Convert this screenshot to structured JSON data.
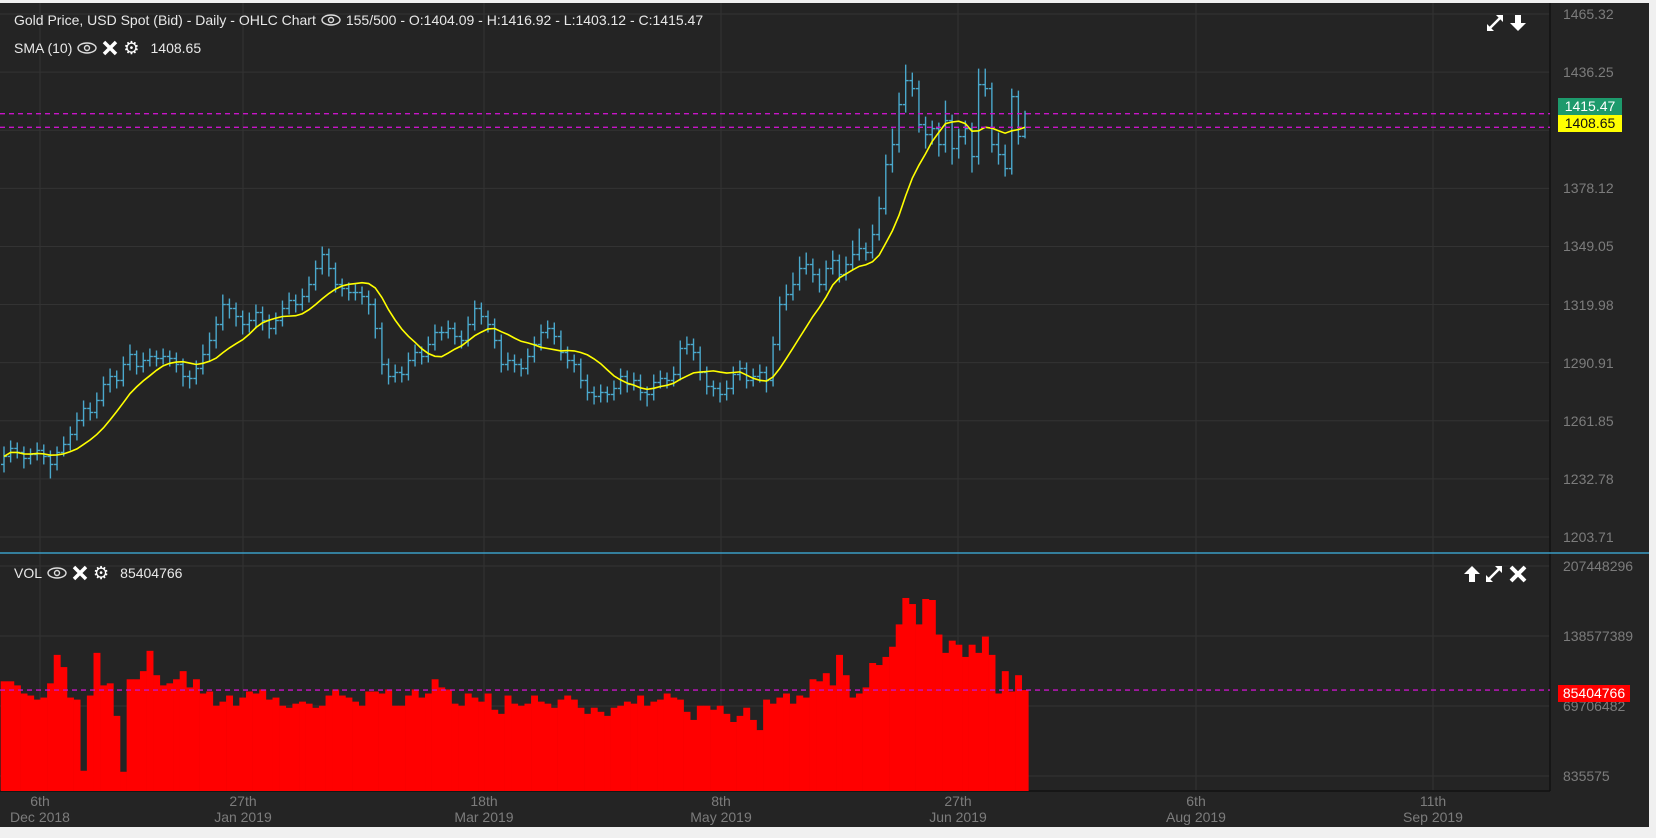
{
  "price_panel": {
    "title": "Gold Price, USD Spot (Bid) - Daily - OHLC Chart",
    "ohlc_readout": "155/500 - O:1404.09 - H:1416.92 - L:1403.12 - C:1415.47",
    "sma_label": "SMA (10)",
    "sma_value": "1408.65",
    "last_price_badge": "1415.47",
    "sma_badge": "1408.65"
  },
  "volume_panel": {
    "label": "VOL",
    "value": "85404766",
    "badge": "85404766"
  },
  "colors": {
    "background": "#242424",
    "ohlc": "#4aa8cc",
    "sma": "#ffff00",
    "guide": "#c814c8",
    "last_badge": "#1d9a6c",
    "sma_badge": "#ffff00",
    "volume": "#ff0000",
    "separator": "#3a9cc4"
  },
  "icons": {
    "visibility": "eye-icon",
    "remove": "close-icon",
    "settings": "gear-icon",
    "maximize": "expand-icon",
    "move_down": "arrow-down-icon",
    "move_up": "arrow-up-icon"
  },
  "chart_data": [
    {
      "type": "ohlc",
      "ylim": [
        1203.71,
        1465.32
      ],
      "y_ticks": [
        "1465.32",
        "1436.25",
        "1378.12",
        "1349.05",
        "1319.98",
        "1290.91",
        "1261.85",
        "1232.78",
        "1203.71"
      ],
      "x_ticks": [
        {
          "day": "6th",
          "month": "Dec 2018"
        },
        {
          "day": "27th",
          "month": "Jan 2019"
        },
        {
          "day": "18th",
          "month": "Mar 2019"
        },
        {
          "day": "8th",
          "month": "May 2019"
        },
        {
          "day": "27th",
          "month": "Jun 2019"
        },
        {
          "day": "6th",
          "month": "Aug 2019"
        },
        {
          "day": "11th",
          "month": "Sep 2019"
        }
      ],
      "grid": true,
      "overlay": {
        "type": "sma",
        "period": 10
      },
      "ohlc": [
        [
          1240,
          1249,
          1236,
          1244
        ],
        [
          1244,
          1252,
          1241,
          1248
        ],
        [
          1248,
          1251,
          1243,
          1246
        ],
        [
          1246,
          1249,
          1238,
          1243
        ],
        [
          1243,
          1248,
          1240,
          1245
        ],
        [
          1245,
          1251,
          1242,
          1247
        ],
        [
          1247,
          1250,
          1240,
          1244
        ],
        [
          1244,
          1247,
          1233,
          1240
        ],
        [
          1240,
          1249,
          1237,
          1246
        ],
        [
          1246,
          1254,
          1244,
          1250
        ],
        [
          1250,
          1259,
          1247,
          1255
        ],
        [
          1255,
          1266,
          1252,
          1262
        ],
        [
          1262,
          1272,
          1259,
          1268
        ],
        [
          1268,
          1271,
          1262,
          1266
        ],
        [
          1266,
          1276,
          1263,
          1272
        ],
        [
          1272,
          1284,
          1269,
          1280
        ],
        [
          1280,
          1288,
          1276,
          1284
        ],
        [
          1284,
          1287,
          1278,
          1282
        ],
        [
          1282,
          1294,
          1279,
          1290
        ],
        [
          1290,
          1300,
          1287,
          1295
        ],
        [
          1295,
          1297,
          1285,
          1289
        ],
        [
          1289,
          1296,
          1286,
          1292
        ],
        [
          1292,
          1298,
          1289,
          1294
        ],
        [
          1294,
          1297,
          1289,
          1293
        ],
        [
          1293,
          1298,
          1290,
          1294
        ],
        [
          1294,
          1297,
          1289,
          1293
        ],
        [
          1293,
          1296,
          1286,
          1290
        ],
        [
          1290,
          1293,
          1279,
          1284
        ],
        [
          1284,
          1287,
          1278,
          1283
        ],
        [
          1283,
          1292,
          1280,
          1288
        ],
        [
          1288,
          1300,
          1285,
          1295
        ],
        [
          1295,
          1306,
          1292,
          1302
        ],
        [
          1302,
          1314,
          1298,
          1310
        ],
        [
          1310,
          1325,
          1307,
          1320
        ],
        [
          1320,
          1323,
          1313,
          1318
        ],
        [
          1318,
          1321,
          1309,
          1314
        ],
        [
          1314,
          1317,
          1305,
          1310
        ],
        [
          1310,
          1316,
          1306,
          1312
        ],
        [
          1312,
          1320,
          1308,
          1316
        ],
        [
          1316,
          1319,
          1307,
          1312
        ],
        [
          1312,
          1315,
          1303,
          1308
        ],
        [
          1308,
          1316,
          1305,
          1312
        ],
        [
          1312,
          1322,
          1309,
          1318
        ],
        [
          1318,
          1326,
          1315,
          1322
        ],
        [
          1322,
          1325,
          1316,
          1320
        ],
        [
          1320,
          1328,
          1317,
          1324
        ],
        [
          1324,
          1334,
          1321,
          1330
        ],
        [
          1330,
          1342,
          1327,
          1338
        ],
        [
          1338,
          1349,
          1335,
          1345
        ],
        [
          1345,
          1348,
          1334,
          1338
        ],
        [
          1338,
          1341,
          1326,
          1330
        ],
        [
          1330,
          1333,
          1324,
          1328
        ],
        [
          1328,
          1331,
          1322,
          1326
        ],
        [
          1326,
          1330,
          1322,
          1326
        ],
        [
          1326,
          1329,
          1320,
          1324
        ],
        [
          1324,
          1327,
          1315,
          1320
        ],
        [
          1320,
          1323,
          1303,
          1308
        ],
        [
          1308,
          1311,
          1285,
          1290
        ],
        [
          1290,
          1293,
          1280,
          1284
        ],
        [
          1284,
          1290,
          1281,
          1286
        ],
        [
          1286,
          1289,
          1281,
          1285
        ],
        [
          1285,
          1296,
          1282,
          1292
        ],
        [
          1292,
          1300,
          1289,
          1296
        ],
        [
          1296,
          1299,
          1290,
          1294
        ],
        [
          1294,
          1304,
          1291,
          1300
        ],
        [
          1300,
          1310,
          1297,
          1306
        ],
        [
          1306,
          1309,
          1302,
          1306
        ],
        [
          1306,
          1312,
          1303,
          1308
        ],
        [
          1308,
          1311,
          1300,
          1304
        ],
        [
          1304,
          1307,
          1298,
          1302
        ],
        [
          1302,
          1314,
          1299,
          1310
        ],
        [
          1310,
          1322,
          1307,
          1318
        ],
        [
          1318,
          1321,
          1310,
          1314
        ],
        [
          1314,
          1317,
          1306,
          1310
        ],
        [
          1310,
          1313,
          1298,
          1302
        ],
        [
          1302,
          1305,
          1286,
          1290
        ],
        [
          1290,
          1296,
          1287,
          1292
        ],
        [
          1292,
          1295,
          1286,
          1290
        ],
        [
          1290,
          1293,
          1284,
          1288
        ],
        [
          1288,
          1298,
          1285,
          1294
        ],
        [
          1294,
          1304,
          1291,
          1300
        ],
        [
          1300,
          1310,
          1297,
          1306
        ],
        [
          1306,
          1312,
          1303,
          1308
        ],
        [
          1308,
          1311,
          1300,
          1304
        ],
        [
          1304,
          1307,
          1292,
          1296
        ],
        [
          1296,
          1299,
          1288,
          1292
        ],
        [
          1292,
          1295,
          1286,
          1290
        ],
        [
          1290,
          1293,
          1278,
          1282
        ],
        [
          1282,
          1285,
          1272,
          1276
        ],
        [
          1276,
          1279,
          1270,
          1274
        ],
        [
          1274,
          1280,
          1271,
          1276
        ],
        [
          1276,
          1279,
          1271,
          1275
        ],
        [
          1275,
          1282,
          1272,
          1278
        ],
        [
          1278,
          1288,
          1275,
          1284
        ],
        [
          1284,
          1287,
          1276,
          1280
        ],
        [
          1280,
          1286,
          1277,
          1282
        ],
        [
          1282,
          1285,
          1272,
          1276
        ],
        [
          1276,
          1279,
          1269,
          1275
        ],
        [
          1275,
          1285,
          1272,
          1281
        ],
        [
          1281,
          1287,
          1278,
          1283
        ],
        [
          1283,
          1286,
          1278,
          1282
        ],
        [
          1282,
          1289,
          1279,
          1285
        ],
        [
          1285,
          1302,
          1282,
          1298
        ],
        [
          1298,
          1304,
          1295,
          1300
        ],
        [
          1300,
          1303,
          1292,
          1296
        ],
        [
          1296,
          1299,
          1282,
          1286
        ],
        [
          1286,
          1289,
          1275,
          1279
        ],
        [
          1279,
          1282,
          1274,
          1278
        ],
        [
          1278,
          1281,
          1271,
          1275
        ],
        [
          1275,
          1282,
          1272,
          1278
        ],
        [
          1278,
          1289,
          1275,
          1285
        ],
        [
          1285,
          1292,
          1282,
          1288
        ],
        [
          1288,
          1291,
          1278,
          1282
        ],
        [
          1282,
          1288,
          1279,
          1284
        ],
        [
          1284,
          1290,
          1281,
          1286
        ],
        [
          1286,
          1289,
          1276,
          1282
        ],
        [
          1282,
          1304,
          1279,
          1300
        ],
        [
          1300,
          1324,
          1297,
          1320
        ],
        [
          1320,
          1330,
          1317,
          1325
        ],
        [
          1325,
          1336,
          1322,
          1330
        ],
        [
          1330,
          1344,
          1327,
          1338
        ],
        [
          1338,
          1346,
          1335,
          1340
        ],
        [
          1340,
          1343,
          1331,
          1335
        ],
        [
          1335,
          1338,
          1326,
          1330
        ],
        [
          1330,
          1342,
          1327,
          1338
        ],
        [
          1338,
          1347,
          1335,
          1342
        ],
        [
          1342,
          1345,
          1331,
          1335
        ],
        [
          1335,
          1344,
          1332,
          1340
        ],
        [
          1340,
          1352,
          1337,
          1345
        ],
        [
          1345,
          1358,
          1342,
          1348
        ],
        [
          1348,
          1351,
          1342,
          1346
        ],
        [
          1346,
          1360,
          1343,
          1355
        ],
        [
          1355,
          1374,
          1352,
          1368
        ],
        [
          1368,
          1395,
          1365,
          1390
        ],
        [
          1390,
          1408,
          1386,
          1400
        ],
        [
          1400,
          1426,
          1396,
          1420
        ],
        [
          1420,
          1440,
          1416,
          1432
        ],
        [
          1432,
          1436,
          1424,
          1428
        ],
        [
          1428,
          1432,
          1406,
          1410
        ],
        [
          1410,
          1414,
          1398,
          1405
        ],
        [
          1405,
          1412,
          1400,
          1408
        ],
        [
          1408,
          1411,
          1394,
          1400
        ],
        [
          1400,
          1422,
          1396,
          1412
        ],
        [
          1412,
          1415,
          1390,
          1398
        ],
        [
          1398,
          1408,
          1393,
          1404
        ],
        [
          1404,
          1412,
          1400,
          1408
        ],
        [
          1408,
          1411,
          1386,
          1394
        ],
        [
          1394,
          1438,
          1390,
          1430
        ],
        [
          1430,
          1438,
          1424,
          1428
        ],
        [
          1428,
          1431,
          1396,
          1400
        ],
        [
          1400,
          1406,
          1390,
          1395
        ],
        [
          1395,
          1400,
          1384,
          1388
        ],
        [
          1388,
          1428,
          1385,
          1424
        ],
        [
          1424,
          1427,
          1400,
          1404.09
        ],
        [
          1404.09,
          1416.92,
          1403.12,
          1415.47
        ]
      ],
      "horizontal_lines": [
        1415.47,
        1408.65
      ]
    },
    {
      "type": "bar",
      "ylim": [
        835575,
        207448296
      ],
      "y_ticks": [
        "207448296",
        "138577389",
        "69706482",
        "835575"
      ],
      "horizontal_lines": [
        85404766
      ],
      "values": [
        94000000,
        94000000,
        90000000,
        82000000,
        80000000,
        76000000,
        78000000,
        92000000,
        120000000,
        108000000,
        78000000,
        76000000,
        6000000,
        80000000,
        122000000,
        90000000,
        92000000,
        60000000,
        5000000,
        96000000,
        96000000,
        104000000,
        124000000,
        100000000,
        90000000,
        92000000,
        96000000,
        104000000,
        88000000,
        96000000,
        82000000,
        84000000,
        70000000,
        74000000,
        80000000,
        70000000,
        78000000,
        84000000,
        82000000,
        86000000,
        76000000,
        78000000,
        70000000,
        68000000,
        72000000,
        74000000,
        72000000,
        68000000,
        70000000,
        80000000,
        86000000,
        80000000,
        78000000,
        74000000,
        70000000,
        84000000,
        84000000,
        82000000,
        86000000,
        70000000,
        70000000,
        80000000,
        86000000,
        78000000,
        82000000,
        96000000,
        88000000,
        86000000,
        72000000,
        70000000,
        82000000,
        78000000,
        74000000,
        82000000,
        66000000,
        62000000,
        80000000,
        72000000,
        70000000,
        72000000,
        80000000,
        74000000,
        72000000,
        68000000,
        76000000,
        80000000,
        76000000,
        68000000,
        62000000,
        68000000,
        64000000,
        60000000,
        68000000,
        70000000,
        74000000,
        72000000,
        80000000,
        70000000,
        74000000,
        76000000,
        82000000,
        78000000,
        76000000,
        64000000,
        56000000,
        70000000,
        70000000,
        66000000,
        70000000,
        62000000,
        54000000,
        60000000,
        68000000,
        56000000,
        46000000,
        76000000,
        72000000,
        78000000,
        82000000,
        72000000,
        80000000,
        78000000,
        96000000,
        94000000,
        102000000,
        90000000,
        120000000,
        100000000,
        78000000,
        82000000,
        88000000,
        112000000,
        110000000,
        118000000,
        128000000,
        150000000,
        176000000,
        170000000,
        150000000,
        175000000,
        174000000,
        140000000,
        122000000,
        134000000,
        130000000,
        118000000,
        130000000,
        122000000,
        138000000,
        120000000,
        82000000,
        104000000,
        84000000,
        100000000,
        85404766
      ]
    }
  ]
}
